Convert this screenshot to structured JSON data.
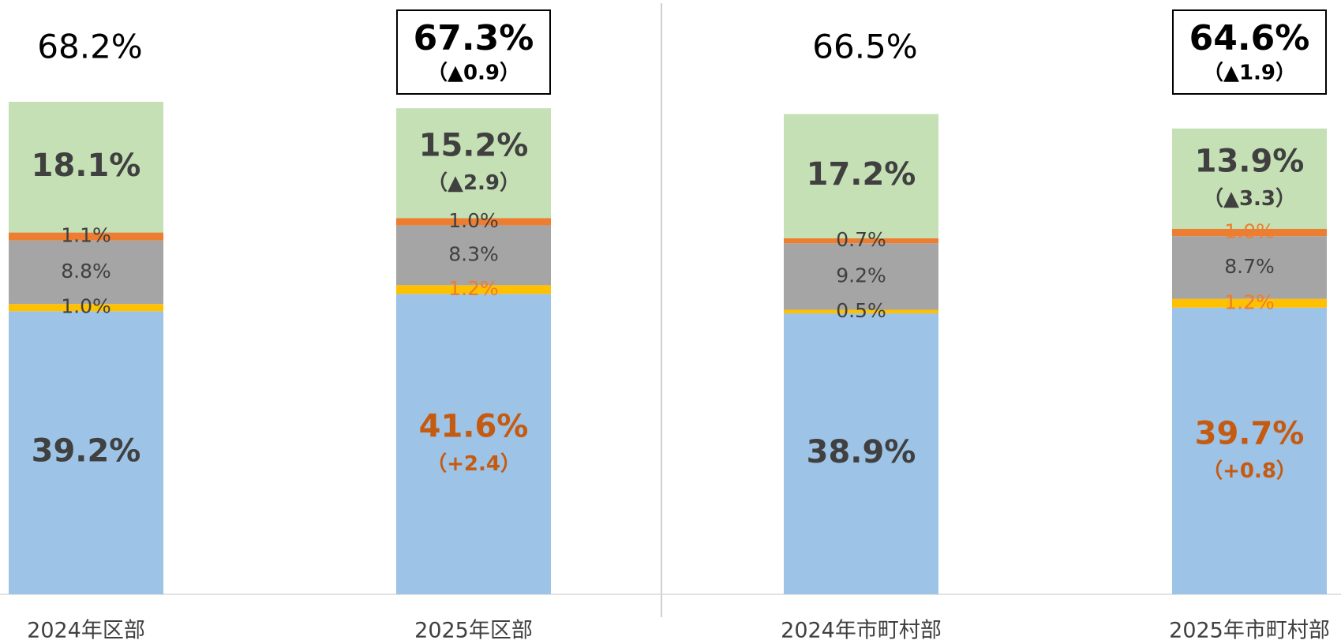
{
  "chart_data": {
    "type": "stacked_bar",
    "categories": [
      "2024年区部",
      "2025年区部",
      "2024年市町村部",
      "2025年市町村部"
    ],
    "ylim": [
      0,
      80
    ],
    "series": [
      {
        "color": "#9dc3e6",
        "values": [
          39.2,
          41.6,
          38.9,
          39.7
        ],
        "value_labels": [
          "39.2%",
          "41.6%",
          "38.9%",
          "39.7%"
        ],
        "label_colors": [
          "#404040",
          "#c55a11",
          "#404040",
          "#c55a11"
        ],
        "changes": [
          null,
          "（+2.4）",
          null,
          "（+0.8）"
        ],
        "emphasis": true
      },
      {
        "color": "#ffc000",
        "values": [
          1.0,
          1.2,
          0.5,
          1.2
        ],
        "value_labels": [
          "1.0%",
          "1.2%",
          "0.5%",
          "1.2%"
        ],
        "label_colors": [
          "#404040",
          "#ed7d31",
          "#404040",
          "#ed7d31"
        ],
        "changes": [
          null,
          null,
          null,
          null
        ],
        "emphasis": false
      },
      {
        "color": "#a5a5a5",
        "values": [
          8.8,
          8.3,
          9.2,
          8.7
        ],
        "value_labels": [
          "8.8%",
          "8.3%",
          "9.2%",
          "8.7%"
        ],
        "label_colors": [
          "#404040",
          "#404040",
          "#404040",
          "#404040"
        ],
        "changes": [
          null,
          null,
          null,
          null
        ],
        "emphasis": false
      },
      {
        "color": "#ed7d31",
        "values": [
          1.1,
          1.0,
          0.7,
          1.0
        ],
        "value_labels": [
          "1.1%",
          "1.0%",
          "0.7%",
          "1.0%"
        ],
        "label_colors": [
          "#404040",
          "#404040",
          "#404040",
          "#ed7d31"
        ],
        "changes": [
          null,
          null,
          null,
          null
        ],
        "emphasis": false
      },
      {
        "color": "#c5e0b4",
        "values": [
          18.1,
          15.2,
          17.2,
          13.9
        ],
        "value_labels": [
          "18.1%",
          "15.2%",
          "17.2%",
          "13.9%"
        ],
        "label_colors": [
          "#404040",
          "#404040",
          "#404040",
          "#404040"
        ],
        "changes": [
          null,
          "（▲2.9）",
          null,
          "（▲3.3）"
        ],
        "emphasis": true
      }
    ],
    "totals": {
      "values": [
        68.2,
        67.3,
        66.5,
        64.6
      ],
      "value_labels": [
        "68.2%",
        "67.3%",
        "66.5%",
        "64.6%"
      ],
      "changes": [
        null,
        "（▲0.9）",
        null,
        "（▲1.9）"
      ],
      "boxed": [
        false,
        true,
        false,
        true
      ]
    }
  }
}
